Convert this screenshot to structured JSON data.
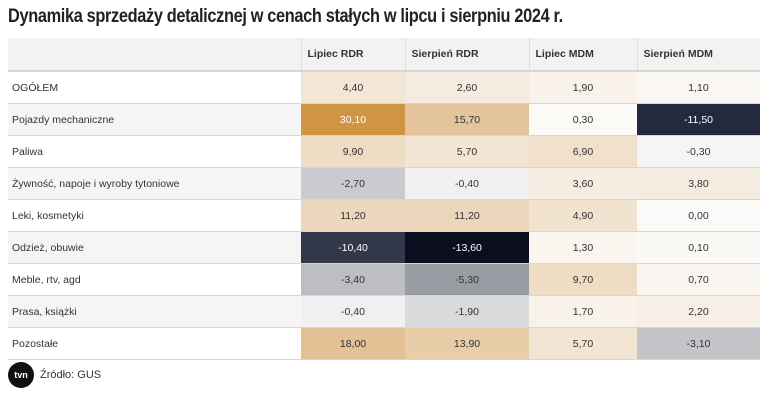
{
  "chart_data": {
    "type": "table",
    "title": "Dynamika sprzedaży detalicznej w cenach stałych w lipcu i sierpniu 2024 r.",
    "columns": [
      "",
      "Lipiec RDR",
      "Sierpień RDR",
      "Lipiec MDM",
      "Sierpień MDM"
    ],
    "rows": [
      {
        "label": "OGÓŁEM",
        "values": [
          "4,40",
          "2,60",
          "1,90",
          "1,10"
        ],
        "colors": [
          "#f3e6d6",
          "#f5ece1",
          "#f8f2ea",
          "#faf6f1"
        ]
      },
      {
        "label": "Pojazdy mechaniczne",
        "values": [
          "30,10",
          "15,70",
          "0,30",
          "-11,50"
        ],
        "colors": [
          "#cf9543",
          "#e4c49c",
          "#fcfaf7",
          "#232a3d"
        ]
      },
      {
        "label": "Paliwa",
        "values": [
          "9,90",
          "5,70",
          "6,90",
          "-0,30"
        ],
        "colors": [
          "#efdcc4",
          "#f3e5d3",
          "#f1e1cc",
          "#f5f5f5"
        ]
      },
      {
        "label": "Żywność, napoje i wyroby tytoniowe",
        "values": [
          "-2,70",
          "-0,40",
          "3,60",
          "3,80"
        ],
        "colors": [
          "#c9cbce",
          "#f0f0f0",
          "#f6ede2",
          "#f5ece1"
        ]
      },
      {
        "label": "Leki, kosmetyki",
        "values": [
          "11,20",
          "11,20",
          "4,90",
          "0,00"
        ],
        "colors": [
          "#edd7bc",
          "#edd7bc",
          "#f2e3d0",
          "#fbfaf8"
        ]
      },
      {
        "label": "Odzież, obuwie",
        "values": [
          "-10,40",
          "-13,60",
          "1,30",
          "0,10"
        ],
        "colors": [
          "#323849",
          "#0b0e1f",
          "#faf5ef",
          "#fbf9f6"
        ]
      },
      {
        "label": "Meble, rtv, agd",
        "values": [
          "-3,40",
          "-5,30",
          "9,70",
          "0,70"
        ],
        "colors": [
          "#bcbec3",
          "#9a9ca3",
          "#efdcc4",
          "#f9f6f1"
        ]
      },
      {
        "label": "Prasa, książki",
        "values": [
          "-0,40",
          "-1,90",
          "1,70",
          "2,20"
        ],
        "colors": [
          "#f0f0f0",
          "#d9dadc",
          "#f8f2ea",
          "#f7efe5"
        ]
      },
      {
        "label": "Pozostałe",
        "values": [
          "18,00",
          "13,90",
          "5,70",
          "-3,10"
        ],
        "colors": [
          "#e3c194",
          "#e8cda9",
          "#f3e5d3",
          "#c3c4c8"
        ]
      }
    ]
  },
  "footer": {
    "logo": "tvn24",
    "source": "Źródło: GUS"
  }
}
